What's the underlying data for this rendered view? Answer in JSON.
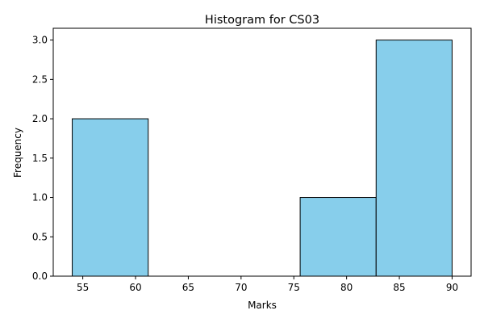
{
  "chart_data": {
    "type": "bar",
    "title": "Histogram for CS03",
    "xlabel": "Marks",
    "ylabel": "Frequency",
    "bins": [
      {
        "start": 54.0,
        "end": 61.2,
        "count": 2
      },
      {
        "start": 61.2,
        "end": 68.4,
        "count": 0
      },
      {
        "start": 68.4,
        "end": 75.6,
        "count": 0
      },
      {
        "start": 75.6,
        "end": 82.8,
        "count": 1
      },
      {
        "start": 82.8,
        "end": 90.0,
        "count": 3
      }
    ],
    "xlim": [
      52.2,
      91.8
    ],
    "ylim": [
      0,
      3.15
    ],
    "xticks": [
      55,
      60,
      65,
      70,
      75,
      80,
      85,
      90
    ],
    "yticks": [
      0.0,
      0.5,
      1.0,
      1.5,
      2.0,
      2.5,
      3.0
    ],
    "bar_color": "#87CEEB",
    "edge_color": "#000000",
    "grid": false
  }
}
